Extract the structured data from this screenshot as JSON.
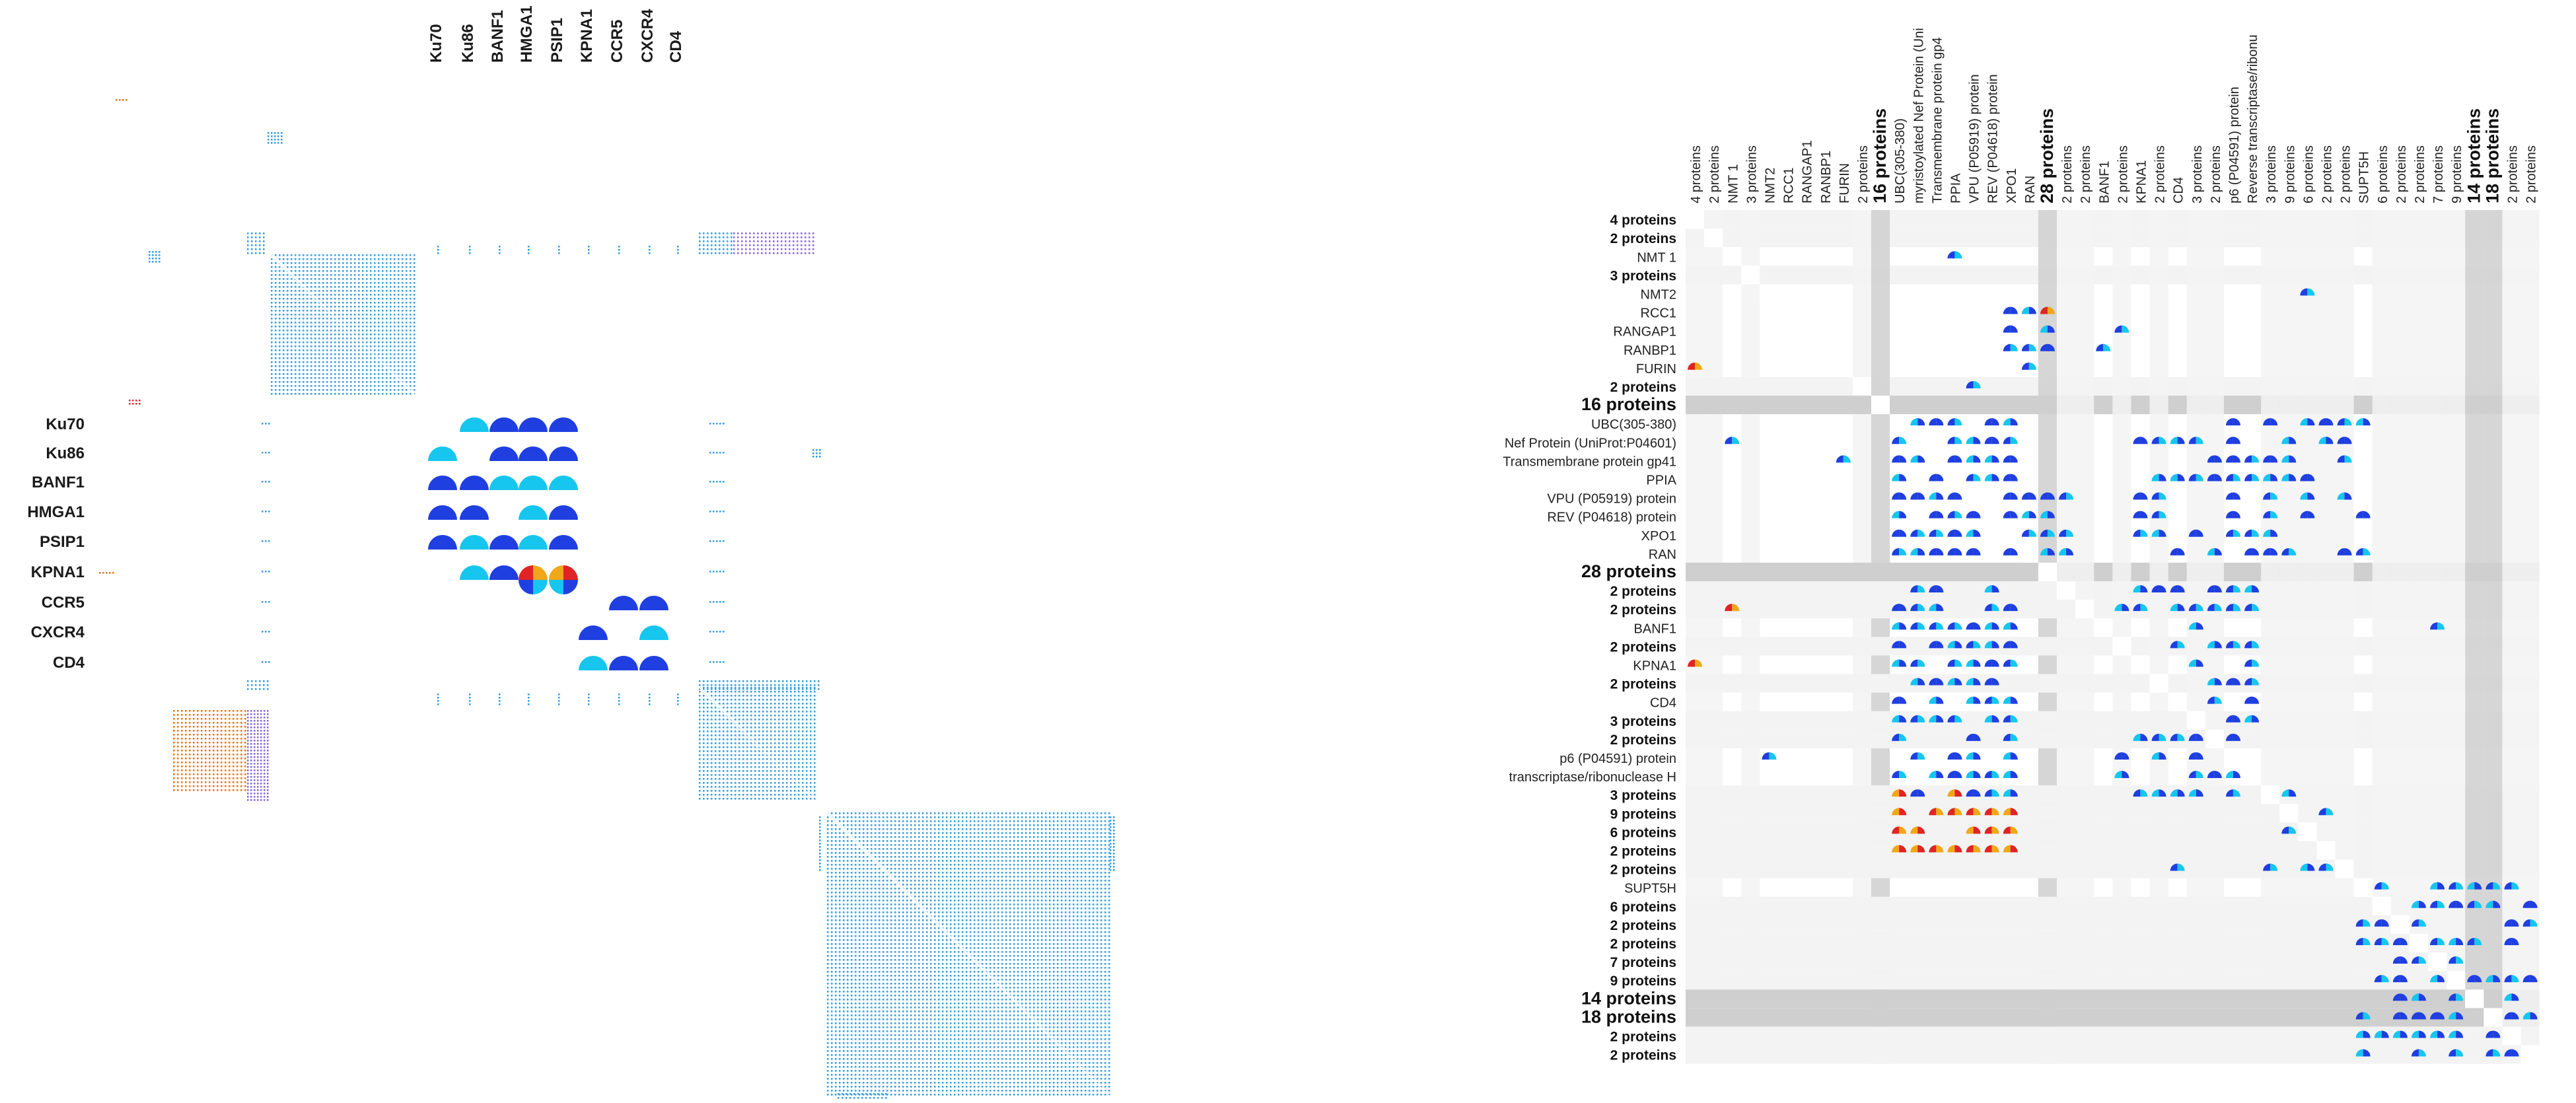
{
  "colors": {
    "cell_blue": "#1f3fe0",
    "cell_cyan": "#16c6ee",
    "cell_red": "#e02424",
    "cell_orange": "#f0a818",
    "cluster_dots": "#39a0e0",
    "purple_dots": "#8a6cd8",
    "orange_dots": "#e07c1e",
    "band_light": "#f3f3f3",
    "band_mid": "#e7e7e7",
    "band_dark": "#cfcfcf"
  },
  "left_panel": {
    "col_labels": [
      "Ku70",
      "Ku86",
      "BANF1",
      "HMGA1",
      "PSIP1",
      "KPNA1",
      "CCR5",
      "CXCR4",
      "CD4"
    ],
    "row_labels": [
      "Ku70",
      "Ku86",
      "BANF1",
      "HMGA1",
      "PSIP1",
      "KPNA1",
      "CCR5",
      "CXCR4",
      "CD4"
    ]
  },
  "right_panel": {
    "col_labels": [
      "4 proteins",
      "2 proteins",
      "NMT 1",
      "3 proteins",
      "NMT2",
      "RCC1",
      "RANGAP1",
      "RANBP1",
      "FURIN",
      "2 proteins",
      "16 proteins",
      "UBC(305-380)",
      "myristoylated Nef Protein (Uni",
      "Transmembrane protein gp4",
      "PPIA",
      "VPU (P05919) protein",
      "REV (P04618) protein",
      "XPO1",
      "RAN",
      "28 proteins",
      "2 proteins",
      "2 proteins",
      "BANF1",
      "2 proteins",
      "KPNA1",
      "2 proteins",
      "CD4",
      "3 proteins",
      "2 proteins",
      "p6 (P04591) protein",
      "Reverse transcriptase/ribonu",
      "3 proteins",
      "9 proteins",
      "6 proteins",
      "2 proteins",
      "2 proteins",
      "SUPT5H",
      "6 proteins",
      "2 proteins",
      "2 proteins",
      "7 proteins",
      "9 proteins",
      "14 proteins",
      "18 proteins",
      "2 proteins",
      "2 proteins"
    ],
    "row_labels": [
      "4 proteins",
      "2 proteins",
      "NMT 1",
      "3 proteins",
      "NMT2",
      "RCC1",
      "RANGAP1",
      "RANBP1",
      "FURIN",
      "2 proteins",
      "16 proteins",
      "UBC(305-380)",
      "Nef Protein (UniProt:P04601)",
      "Transmembrane protein gp41",
      "PPIA",
      "VPU (P05919) protein",
      "REV (P04618) protein",
      "XPO1",
      "RAN",
      "28 proteins",
      "2 proteins",
      "2 proteins",
      "BANF1",
      "2 proteins",
      "KPNA1",
      "2 proteins",
      "CD4",
      "3 proteins",
      "2 proteins",
      "p6 (P04591) protein",
      "transcriptase/ribonuclease H",
      "3 proteins",
      "9 proteins",
      "6 proteins",
      "2 proteins",
      "2 proteins",
      "SUPT5H",
      "6 proteins",
      "2 proteins",
      "2 proteins",
      "7 proteins",
      "9 proteins",
      "14 proteins",
      "18 proteins",
      "2 proteins",
      "2 proteins"
    ],
    "bold_labels": [
      "16 proteins",
      "28 proteins",
      "14 proteins",
      "18 proteins"
    ]
  }
}
